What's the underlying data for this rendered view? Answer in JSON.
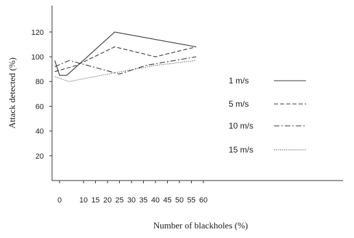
{
  "chart_data": {
    "type": "line",
    "title": "",
    "xlabel": "Number of blackholes (%)",
    "ylabel": "Attack detected (%)",
    "x_ticks": [
      "0",
      "10",
      "15",
      "20",
      "25",
      "30",
      "35",
      "40",
      "45",
      "50",
      "55",
      "60"
    ],
    "y_ticks": [
      "20",
      "40",
      "60",
      "80",
      "100",
      "120"
    ],
    "ylim": [
      0,
      135
    ],
    "grid": false,
    "legend_position": "right",
    "series": [
      {
        "name": "1 m/s",
        "style": "solid",
        "color": "#333333",
        "points": [
          [
            -2,
            97
          ],
          [
            0,
            85
          ],
          [
            3,
            85
          ],
          [
            23,
            120
          ],
          [
            57,
            108
          ]
        ]
      },
      {
        "name": "5 m/s",
        "style": "dashed",
        "color": "#333333",
        "points": [
          [
            -2,
            88
          ],
          [
            7,
            93
          ],
          [
            23,
            108
          ],
          [
            40,
            100
          ],
          [
            57,
            108
          ]
        ]
      },
      {
        "name": "10 m/s",
        "style": "dashdot",
        "color": "#333333",
        "points": [
          [
            -2,
            92
          ],
          [
            4,
            97
          ],
          [
            25,
            86
          ],
          [
            36,
            93
          ],
          [
            57,
            100
          ]
        ]
      },
      {
        "name": "15 m/s",
        "style": "dotted",
        "color": "#555555",
        "points": [
          [
            -2,
            84
          ],
          [
            4,
            80
          ],
          [
            23,
            87
          ],
          [
            40,
            93
          ],
          [
            57,
            97
          ]
        ]
      }
    ]
  }
}
